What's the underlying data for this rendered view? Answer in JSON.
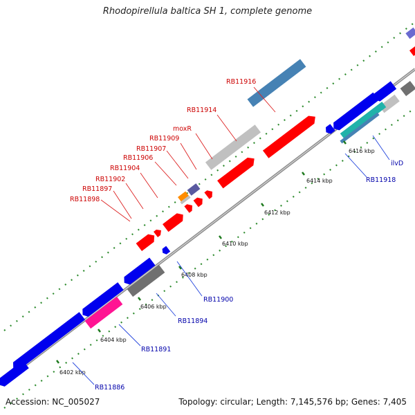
{
  "title": "Rhodopirellula baltica SH 1, complete genome",
  "footer": {
    "accession": "Accession: NC_005027",
    "summary": "Topology: circular; Length: 7,145,576 bp; Genes: 7,405"
  },
  "colors": {
    "cds_forward": "#ff0000",
    "cds_reverse": "#0000ee",
    "rna_gray": "#c0c0c0",
    "dark_gray": "#707070",
    "steel_blue": "#4682b4",
    "magenta": "#ff1493",
    "cyan": "#20b2aa",
    "orange": "#ff8c00",
    "slate": "#5a5aa0",
    "tick_green": "#2e8b2e"
  },
  "position_marks": [
    "6402 kbp",
    "6404 kbp",
    "6406 kbp",
    "6408 kbp",
    "6410 kbp",
    "6412 kbp",
    "6414 kbp",
    "6416 kbp"
  ],
  "forward_labels": [
    "RB11916",
    "RB11914",
    "moxR",
    "RB11909",
    "RB11907",
    "RB11906",
    "RB11904",
    "RB11902",
    "RB11897",
    "RB11898"
  ],
  "reverse_labels": [
    "RB11918",
    "ilvD",
    "RB11900",
    "RB11894",
    "RB11891",
    "RB11886"
  ]
}
